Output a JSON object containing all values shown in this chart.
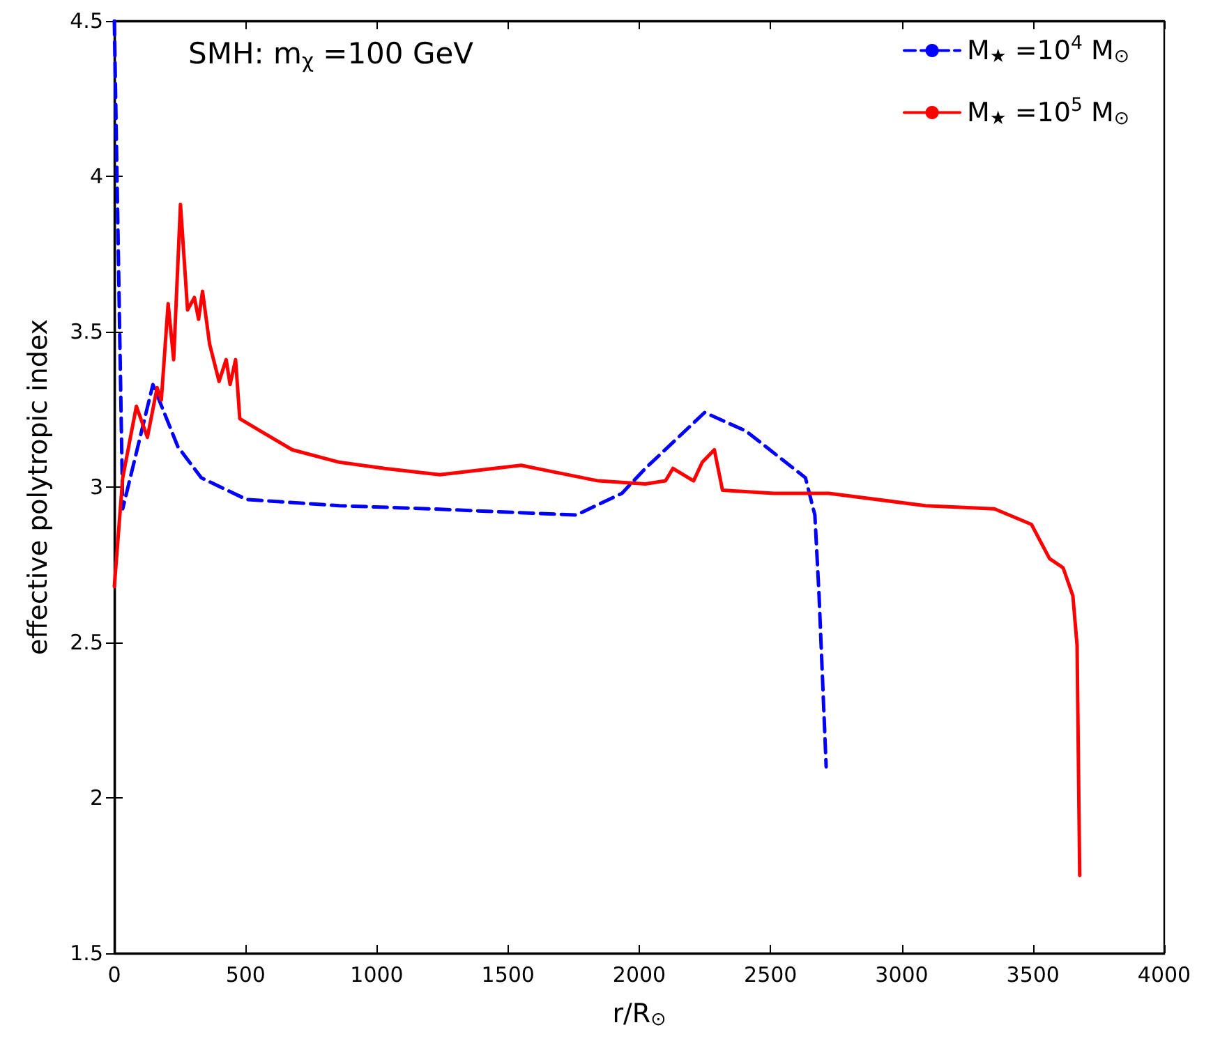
{
  "chart_data": {
    "type": "line",
    "xlabel": "r/R$_{⊙}$",
    "ylabel": "effective polytropic index",
    "annotations": [
      "SMH: m$_{χ}$ =100 GeV"
    ],
    "xlim": [
      0,
      4000
    ],
    "xticks": [
      0,
      500,
      1000,
      1500,
      2000,
      2500,
      3000,
      3500,
      4000
    ],
    "ylim": [
      1.5,
      4.5
    ],
    "yticks": [
      1.5,
      2.0,
      2.5,
      3.0,
      3.5,
      4.0,
      4.5
    ],
    "grid": false,
    "legend": "top right",
    "marker": "none",
    "series": [
      {
        "name": "M$_{★}$ =10$^{4}$ M$_{⊙}$",
        "color": "#0000ff",
        "line_style": "dashed",
        "x": [
          0,
          32,
          147,
          242,
          331,
          504,
          857,
          1203,
          1760,
          1934,
          2023,
          2249,
          2407,
          2633,
          2669,
          2685,
          2712
        ],
        "values": [
          4.5,
          2.93,
          3.33,
          3.13,
          3.03,
          2.96,
          2.94,
          2.93,
          2.91,
          2.98,
          3.06,
          3.24,
          3.18,
          3.03,
          2.91,
          2.65,
          2.1
        ]
      },
      {
        "name": "M$_{★}$ =10$^{5}$ M$_{⊙}$",
        "color": "#ff0000",
        "line_style": "solid",
        "x": [
          0,
          32,
          84,
          126,
          163,
          179,
          205,
          226,
          252,
          279,
          305,
          321,
          336,
          363,
          399,
          426,
          441,
          462,
          478,
          557,
          678,
          857,
          1030,
          1240,
          1550,
          1844,
          2023,
          2100,
          2128,
          2207,
          2240,
          2286,
          2317,
          2512,
          2722,
          3090,
          3353,
          3494,
          3563,
          3615,
          3652,
          3668,
          3678
        ],
        "values": [
          2.68,
          3.03,
          3.26,
          3.16,
          3.32,
          3.28,
          3.59,
          3.41,
          3.91,
          3.57,
          3.61,
          3.54,
          3.63,
          3.46,
          3.34,
          3.41,
          3.33,
          3.41,
          3.22,
          3.18,
          3.12,
          3.08,
          3.06,
          3.04,
          3.07,
          3.02,
          3.01,
          3.02,
          3.06,
          3.02,
          3.08,
          3.12,
          2.99,
          2.98,
          2.98,
          2.94,
          2.93,
          2.88,
          2.77,
          2.74,
          2.65,
          2.49,
          1.75
        ]
      }
    ]
  }
}
